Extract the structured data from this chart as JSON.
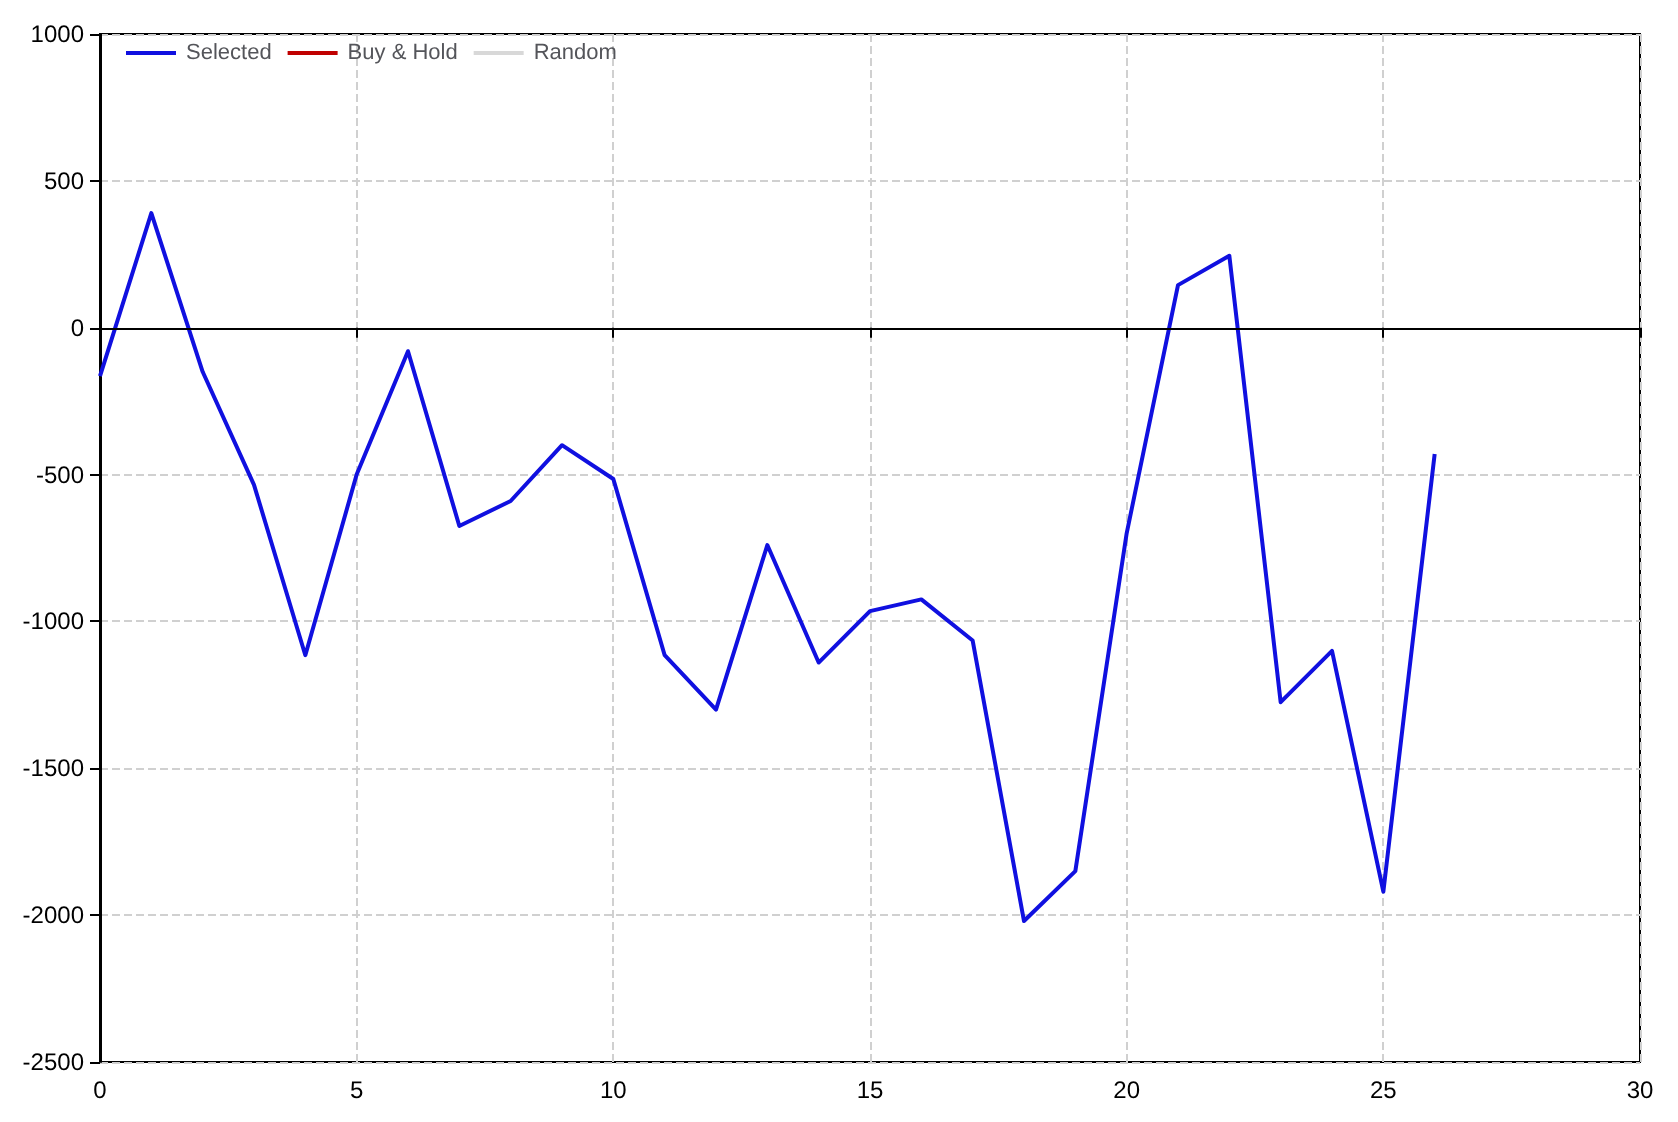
{
  "chart_data": {
    "type": "line",
    "x": [
      0,
      1,
      2,
      3,
      4,
      5,
      6,
      7,
      8,
      9,
      10,
      11,
      12,
      13,
      14,
      15,
      16,
      17,
      18,
      19,
      20,
      21,
      22,
      23,
      24,
      25,
      26
    ],
    "series": [
      {
        "name": "Selected",
        "color": "#1010e0",
        "values": [
          -165,
          390,
          -150,
          -535,
          -1115,
          -500,
          -80,
          -675,
          -590,
          -400,
          -515,
          -1115,
          -1300,
          -740,
          -1140,
          -965,
          -925,
          -1065,
          -2020,
          -1850,
          -700,
          145,
          245,
          -1275,
          -1100,
          -1920,
          -430
        ]
      },
      {
        "name": "Buy & Hold",
        "color": "#c00000",
        "values": [
          null,
          null,
          null,
          null,
          null,
          null,
          null,
          null,
          null,
          null,
          null,
          null,
          null,
          null,
          null,
          null,
          null,
          null,
          null,
          null,
          null,
          null,
          null,
          null,
          null,
          null,
          null
        ]
      },
      {
        "name": "Random",
        "color": "#d8d8d8",
        "values": [
          null,
          null,
          null,
          null,
          null,
          null,
          null,
          null,
          null,
          null,
          null,
          null,
          null,
          null,
          null,
          null,
          null,
          null,
          null,
          null,
          null,
          null,
          null,
          null,
          null,
          null,
          null
        ]
      }
    ],
    "xlim": [
      0,
      30
    ],
    "xticks": [
      0,
      5,
      10,
      15,
      20,
      25,
      30
    ],
    "ylim": [
      -2500,
      1000
    ],
    "yticks": [
      -2500,
      -2000,
      -1500,
      -1000,
      -500,
      0,
      500,
      1000
    ],
    "grid": true,
    "legend": "top left",
    "marker": "none",
    "line_style": "solid",
    "ref_lines": [
      {
        "axis": "y",
        "value": 0,
        "color": "#000000"
      }
    ]
  }
}
